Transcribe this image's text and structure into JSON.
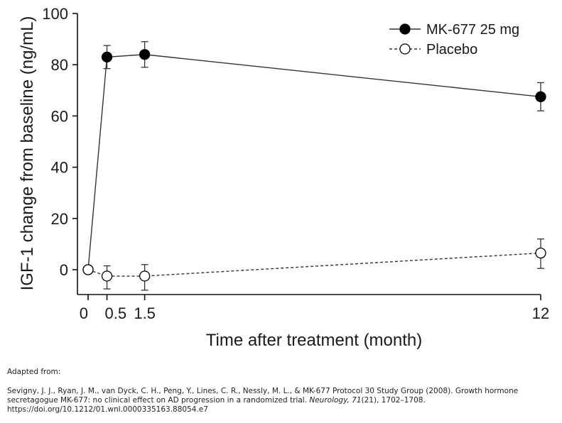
{
  "chart_data": {
    "type": "line",
    "title": "",
    "xlabel": "Time after treatment (month)",
    "ylabel": "IGF-1 change from baseline (ng/mL)",
    "xlim": [
      0,
      12
    ],
    "ylim": [
      -10,
      100
    ],
    "x_ticks": [
      0,
      0.5,
      1.5,
      12
    ],
    "x_tick_labels": [
      "0",
      "0.5",
      "1.5",
      "12"
    ],
    "y_ticks": [
      0,
      20,
      40,
      60,
      80,
      100
    ],
    "y_tick_labels": [
      "0",
      "20",
      "40",
      "60",
      "80",
      "100"
    ],
    "legend_position": "top-right",
    "grid": false,
    "series": [
      {
        "name": "MK-677 25 mg",
        "marker": "filled-circle",
        "line": "solid",
        "color": "#000000",
        "x": [
          0,
          0.5,
          1.5,
          12
        ],
        "values": [
          0,
          83,
          84,
          67.5
        ],
        "error_low": [
          null,
          78.5,
          79,
          62
        ],
        "error_high": [
          null,
          87.5,
          89,
          73
        ]
      },
      {
        "name": "Placebo",
        "marker": "open-circle",
        "line": "dashed",
        "color": "#000000",
        "x": [
          0,
          0.5,
          1.5,
          12
        ],
        "values": [
          0,
          -2.5,
          -2.5,
          6.5
        ],
        "error_low": [
          null,
          -7.5,
          -8,
          0.5
        ],
        "error_high": [
          null,
          1.5,
          2,
          12
        ]
      }
    ]
  },
  "caption": {
    "intro": "Adapted from:",
    "reference_pre": "Sevigny, J. J., Ryan, J. M., van Dyck, C. H., Peng, Y., Lines, C. R., Nessly, M. L., & MK-677 Protocol 30 Study Group (2008). Growth hormone secretagogue MK-677: no clinical effect on AD progression in a randomized trial. ",
    "journal": "Neurology, 71",
    "reference_post": "(21), 1702–1708.",
    "doi": "https://doi.org/10.1212/01.wnl.0000335163.88054.e7"
  }
}
